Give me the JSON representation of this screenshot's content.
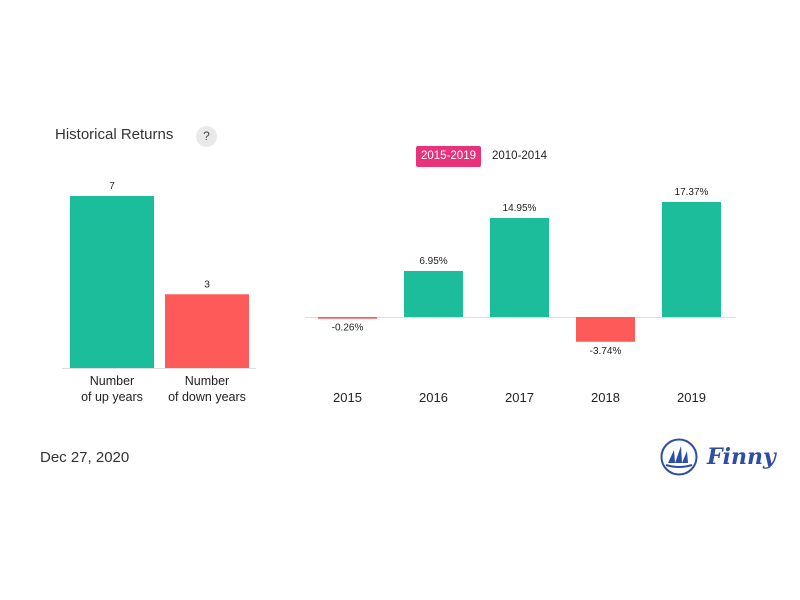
{
  "header": {
    "title": "Historical Returns",
    "help_label": "?"
  },
  "tabs": [
    {
      "label": "2015-2019",
      "active": true
    },
    {
      "label": "2010-2014",
      "active": false
    }
  ],
  "colors": {
    "positive": "#1bbd9a",
    "negative": "#ff5a5a",
    "accent": "#e8337c",
    "brand": "#2c4ea5"
  },
  "chart_data": [
    {
      "type": "bar",
      "categories": [
        "Number\nof up years",
        "Number\nof down years"
      ],
      "values": [
        7,
        3
      ],
      "labels": [
        "7",
        "3"
      ],
      "ylim": [
        0,
        7
      ]
    },
    {
      "type": "bar",
      "categories": [
        "2015",
        "2016",
        "2017",
        "2018",
        "2019"
      ],
      "values": [
        -0.26,
        6.95,
        14.95,
        -3.74,
        17.37
      ],
      "labels": [
        "-0.26%",
        "6.95%",
        "14.95%",
        "-3.74%",
        "17.37%"
      ],
      "unit": "%",
      "ylim": [
        -3.74,
        17.37
      ]
    }
  ],
  "footer": {
    "date": "Dec 27, 2020",
    "brand": "Finny"
  }
}
